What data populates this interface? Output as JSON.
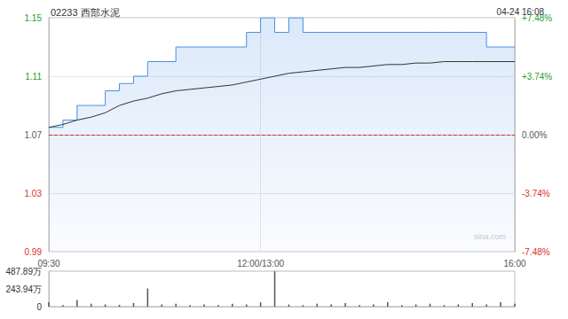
{
  "chart_data": [
    {
      "type": "line",
      "title": "02233 西部水泥",
      "subtitle": "04-24 16:08",
      "annotation": "sina.com",
      "categories": [
        "09:30",
        null,
        null,
        null,
        null,
        null,
        null,
        null,
        null,
        null,
        null,
        null,
        null,
        null,
        null,
        "12:00/13:00",
        null,
        null,
        null,
        null,
        null,
        null,
        null,
        null,
        null,
        null,
        null,
        null,
        null,
        null,
        null,
        null,
        null,
        "16:00"
      ],
      "series": [
        {
          "color": "#4a8ee6",
          "line_style": "solid",
          "values": [
            1.075,
            1.08,
            1.09,
            1.09,
            1.1,
            1.105,
            1.11,
            1.12,
            1.12,
            1.13,
            1.13,
            1.13,
            1.13,
            1.13,
            1.14,
            1.15,
            1.14,
            1.15,
            1.14,
            1.14,
            1.14,
            1.14,
            1.14,
            1.14,
            1.14,
            1.14,
            1.14,
            1.14,
            1.14,
            1.14,
            1.14,
            1.13,
            1.13,
            1.13
          ]
        },
        {
          "color": "#333333",
          "line_style": "solid",
          "values": [
            1.075,
            1.077,
            1.08,
            1.082,
            1.085,
            1.09,
            1.093,
            1.095,
            1.098,
            1.1,
            1.101,
            1.102,
            1.103,
            1.104,
            1.106,
            1.108,
            1.11,
            1.112,
            1.113,
            1.114,
            1.115,
            1.116,
            1.116,
            1.117,
            1.118,
            1.118,
            1.119,
            1.119,
            1.12,
            1.12,
            1.12,
            1.12,
            1.12,
            1.12
          ]
        }
      ],
      "previous_close": 1.07,
      "ylim": [
        0.99,
        1.15
      ],
      "yticks": [
        0.99,
        1.03,
        1.07,
        1.11,
        1.15
      ],
      "y2lim": [
        -7.48,
        7.48
      ],
      "y2ticks": [
        {
          "value": -7.48,
          "label": "-7.48%"
        },
        {
          "value": -3.74,
          "label": "-3.74%"
        },
        {
          "value": 0,
          "label": "0.00%"
        },
        {
          "value": 3.74,
          "label": "+3.74%"
        },
        {
          "value": 7.48,
          "label": "+7.48%"
        }
      ],
      "grid": true
    },
    {
      "type": "bar",
      "categories": [
        "09:30",
        null,
        null,
        null,
        null,
        null,
        null,
        null,
        null,
        null,
        null,
        null,
        null,
        null,
        null,
        "12:00/13:00",
        null,
        null,
        null,
        null,
        null,
        null,
        null,
        null,
        null,
        null,
        null,
        null,
        null,
        null,
        null,
        null,
        null,
        "16:00"
      ],
      "values": [
        60,
        20,
        90,
        40,
        30,
        25,
        50,
        250,
        30,
        40,
        20,
        30,
        20,
        40,
        30,
        60,
        487,
        30,
        20,
        40,
        30,
        50,
        20,
        30,
        60,
        20,
        30,
        40,
        20,
        30,
        50,
        30,
        60,
        40
      ],
      "color": "#555555",
      "ylim": [
        0,
        487.89
      ],
      "yticks": [
        0,
        {
          "value": 243.94,
          "label": "243.94万"
        },
        {
          "value": 487.89,
          "label": "487.89万"
        }
      ],
      "tick_labels": "y",
      "grid": false
    }
  ]
}
